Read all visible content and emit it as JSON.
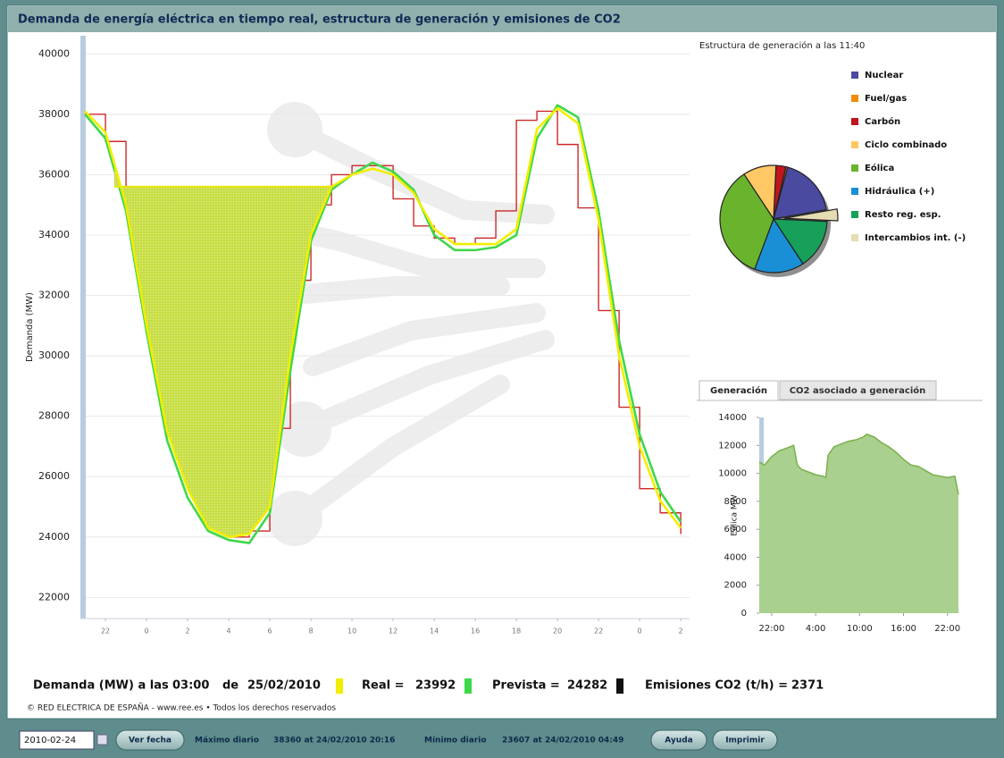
{
  "title": "Demanda de energía eléctrica en tiempo real, estructura de generación y emisiones de CO2",
  "chart_data": [
    {
      "type": "line",
      "y_label": "Demanda (MW)",
      "x": [
        -1,
        0,
        1,
        2,
        3,
        4,
        5,
        6,
        7,
        8,
        9,
        10,
        11,
        12,
        13,
        14,
        15,
        16,
        17,
        18,
        19,
        20,
        21,
        22,
        23,
        24,
        25,
        26,
        27,
        28
      ],
      "xlim": [
        -1.22,
        28.43
      ],
      "xticks": [
        {
          "value": 0,
          "label": "22"
        },
        {
          "value": 2,
          "label": "0"
        },
        {
          "value": 4,
          "label": "2"
        },
        {
          "value": 6,
          "label": "4"
        },
        {
          "value": 8,
          "label": "6"
        },
        {
          "value": 10,
          "label": "8"
        },
        {
          "value": 12,
          "label": "10"
        },
        {
          "value": 14,
          "label": "12"
        },
        {
          "value": 16,
          "label": "14"
        },
        {
          "value": 18,
          "label": "16"
        },
        {
          "value": 20,
          "label": "18"
        },
        {
          "value": 22,
          "label": "20"
        },
        {
          "value": 24,
          "label": "22"
        },
        {
          "value": 26,
          "label": "0"
        },
        {
          "value": 28,
          "label": "2"
        }
      ],
      "ylim": [
        21300,
        40600
      ],
      "yticks": [
        22000,
        24000,
        26000,
        28000,
        30000,
        32000,
        34000,
        36000,
        38000,
        40000
      ],
      "grid": true,
      "series": [
        {
          "color": "#cc2a2a",
          "step": true,
          "values": [
            38000,
            37100,
            35300,
            32000,
            28400,
            26600,
            24500,
            24000,
            24200,
            27600,
            32500,
            35000,
            36000,
            36300,
            36300,
            35200,
            34300,
            33900,
            33700,
            33900,
            34800,
            37800,
            38100,
            37000,
            34900,
            31500,
            28300,
            25600,
            24800,
            24100
          ]
        },
        {
          "name": "Prevista",
          "color": "#3fd84a",
          "values": [
            38000,
            37200,
            34800,
            30800,
            27200,
            25300,
            24200,
            23900,
            23800,
            24800,
            29500,
            33800,
            35500,
            36000,
            36400,
            36100,
            35500,
            34000,
            33500,
            33500,
            33600,
            34000,
            37200,
            38300,
            37900,
            34800,
            30500,
            27400,
            25500,
            24500
          ]
        },
        {
          "name": "Real",
          "color": "#f2ee00",
          "values": [
            38100,
            37400,
            35000,
            31000,
            27500,
            25600,
            24300,
            24000,
            24100,
            25000,
            30000,
            34000,
            35600,
            36000,
            36200,
            36000,
            35400,
            34200,
            33700,
            33700,
            33700,
            34200,
            37500,
            38200,
            37700,
            34500,
            30000,
            27000,
            25200,
            24300
          ]
        }
      ],
      "highlight": {
        "level": 35600,
        "from": 0.45,
        "to": 11,
        "color": "#c4dc3a"
      }
    },
    {
      "type": "pie",
      "title": "Estructura de generación a las 11:40",
      "categories": [
        "Nuclear",
        "Fuel/gas",
        "Carbón",
        "Ciclo combinado",
        "Eólica",
        "Hidráulica (+)",
        "Resto reg. esp.",
        "Intercambios int. (-)"
      ],
      "values": [
        18,
        0.5,
        3,
        10,
        35,
        15,
        15,
        3.5
      ],
      "colors": [
        "#4a4aa0",
        "#f08c00",
        "#c0141e",
        "#ffc864",
        "#6ab42d",
        "#1a8fd6",
        "#17a05a",
        "#e6dcb4"
      ],
      "exploded": 7
    },
    {
      "type": "area",
      "y_label": "Eólica MW",
      "x": [
        -1.7,
        -1,
        0,
        1,
        2,
        3,
        3.5,
        4,
        5,
        6,
        7,
        7.4,
        7.7,
        8.5,
        9.5,
        10.5,
        11.5,
        12.5,
        13,
        14,
        15,
        16,
        17,
        18,
        19,
        20,
        21,
        22,
        23,
        24,
        25,
        25.5
      ],
      "values": [
        10800,
        10600,
        11200,
        11600,
        11800,
        12000,
        10600,
        10300,
        10100,
        9900,
        9800,
        9700,
        11300,
        11900,
        12100,
        12300,
        12400,
        12600,
        12800,
        12600,
        12200,
        11900,
        11500,
        11000,
        10600,
        10500,
        10200,
        9900,
        9800,
        9700,
        9800,
        8500
      ],
      "xlim": [
        -1.7,
        25.5
      ],
      "xticks": [
        {
          "value": 0,
          "label": "22:00"
        },
        {
          "value": 6,
          "label": "4:00"
        },
        {
          "value": 12,
          "label": "10:00"
        },
        {
          "value": 18,
          "label": "16:00"
        },
        {
          "value": 24,
          "label": "22:00"
        }
      ],
      "ylim": [
        0,
        14000
      ],
      "yticks": [
        0,
        2000,
        4000,
        6000,
        8000,
        10000,
        12000,
        14000
      ],
      "color": "#a9d08e",
      "line_color": "#79b04a"
    }
  ],
  "tabs": [
    "Generación",
    "CO2 asociado a generación"
  ],
  "readout": {
    "label": "Demanda (MW) a las",
    "time": "03:00",
    "de": "de",
    "date": "25/02/2010",
    "real_label": "Real =",
    "real": 23992,
    "prevista_label": "Prevista =",
    "prevista": 24282,
    "co2_label": "Emisiones CO2 (t/h) =",
    "co2": 2371
  },
  "footer": "© RED ELECTRICA DE ESPAÑA - www.ree.es • Todos los derechos reservados",
  "toolbar": {
    "date": "2010-02-24",
    "button": "Ver fecha",
    "max_label": "Máximo diario",
    "max": "38360 at 24/02/2010 20:16",
    "min_label": "Mínimo diario",
    "min": "23607 at 24/02/2010 04:49",
    "help": "Ayuda",
    "print": "Imprimir"
  }
}
